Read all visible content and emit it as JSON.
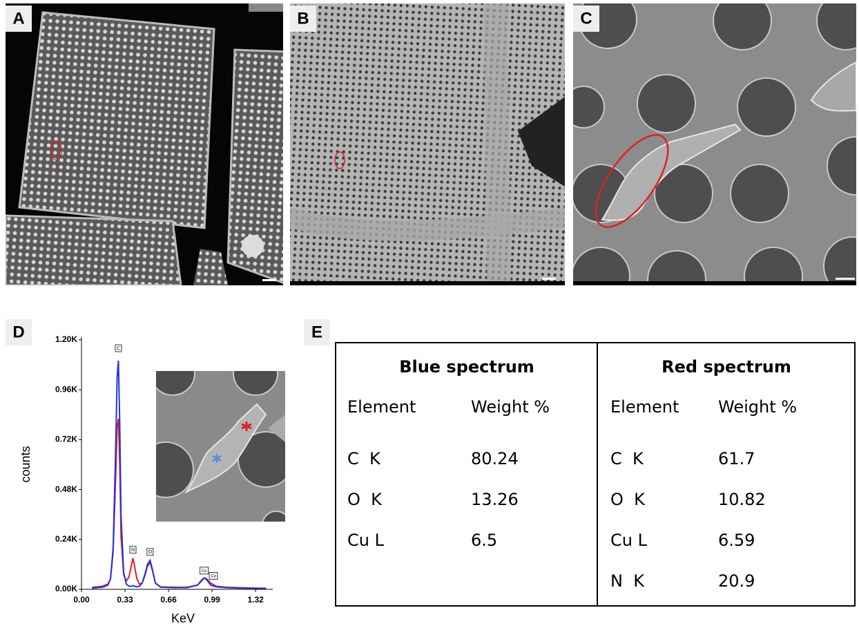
{
  "panel_labels": [
    "A",
    "B",
    "C",
    "D",
    "E"
  ],
  "chart_data": {
    "type": "line",
    "x_label": "KeV",
    "y_label": "counts",
    "x": [
      0.08,
      0.12,
      0.16,
      0.2,
      0.22,
      0.24,
      0.26,
      0.27,
      0.28,
      0.29,
      0.3,
      0.32,
      0.34,
      0.36,
      0.38,
      0.39,
      0.4,
      0.42,
      0.44,
      0.46,
      0.48,
      0.5,
      0.52,
      0.54,
      0.56,
      0.6,
      0.7,
      0.8,
      0.88,
      0.91,
      0.93,
      0.95,
      0.98,
      1.02,
      1.1,
      1.2,
      1.3,
      1.4
    ],
    "series": [
      {
        "color": "#e02020",
        "values": [
          10,
          12,
          15,
          25,
          50,
          180,
          550,
          780,
          820,
          600,
          250,
          70,
          40,
          60,
          120,
          150,
          120,
          50,
          25,
          30,
          65,
          110,
          130,
          85,
          30,
          12,
          10,
          10,
          20,
          45,
          55,
          50,
          30,
          15,
          10,
          8,
          6,
          5
        ]
      },
      {
        "color": "#1f35e6",
        "values": [
          5,
          8,
          10,
          20,
          50,
          200,
          700,
          1020,
          1100,
          800,
          350,
          80,
          25,
          15,
          15,
          18,
          15,
          12,
          15,
          30,
          70,
          120,
          140,
          90,
          30,
          10,
          8,
          8,
          20,
          40,
          55,
          45,
          20,
          12,
          8,
          6,
          5,
          5
        ]
      }
    ],
    "annotations": [
      {
        "text": "C",
        "x": 0.28,
        "y": 1160
      },
      {
        "text": "N",
        "x": 0.39,
        "y": 190
      },
      {
        "text": "O",
        "x": 0.52,
        "y": 180
      },
      {
        "text": "Cu",
        "x": 0.93,
        "y": 90
      },
      {
        "text": "Cu",
        "x": 1.0,
        "y": 65
      }
    ],
    "xlim": [
      0,
      1.45
    ],
    "ylim": [
      0,
      1200
    ],
    "xticks": [
      {
        "value": 0,
        "label": "0.00"
      },
      0.33,
      0.66,
      0.99,
      1.32
    ],
    "yticks": [
      {
        "value": 0,
        "label": "0.00K"
      },
      {
        "value": 240,
        "label": "0.24K"
      },
      {
        "value": 480,
        "label": "0.48K"
      },
      {
        "value": 720,
        "label": "0.72K"
      },
      {
        "value": 960,
        "label": "0.96K"
      },
      {
        "value": 1200,
        "label": "1.20K"
      }
    ]
  },
  "table": {
    "columns": [
      {
        "title": "Blue spectrum",
        "headers": [
          "Element",
          "Weight %"
        ],
        "rows": [
          [
            "C  K",
            80.24
          ],
          [
            "O  K",
            13.26
          ],
          [
            "Cu L",
            6.5
          ]
        ]
      },
      {
        "title": "Red spectrum",
        "headers": [
          "Element",
          "Weight %"
        ],
        "rows": [
          [
            "C  K",
            61.7
          ],
          [
            "O  K",
            10.82
          ],
          [
            "Cu L",
            6.59
          ],
          [
            "N  K",
            20.9
          ]
        ]
      }
    ]
  }
}
